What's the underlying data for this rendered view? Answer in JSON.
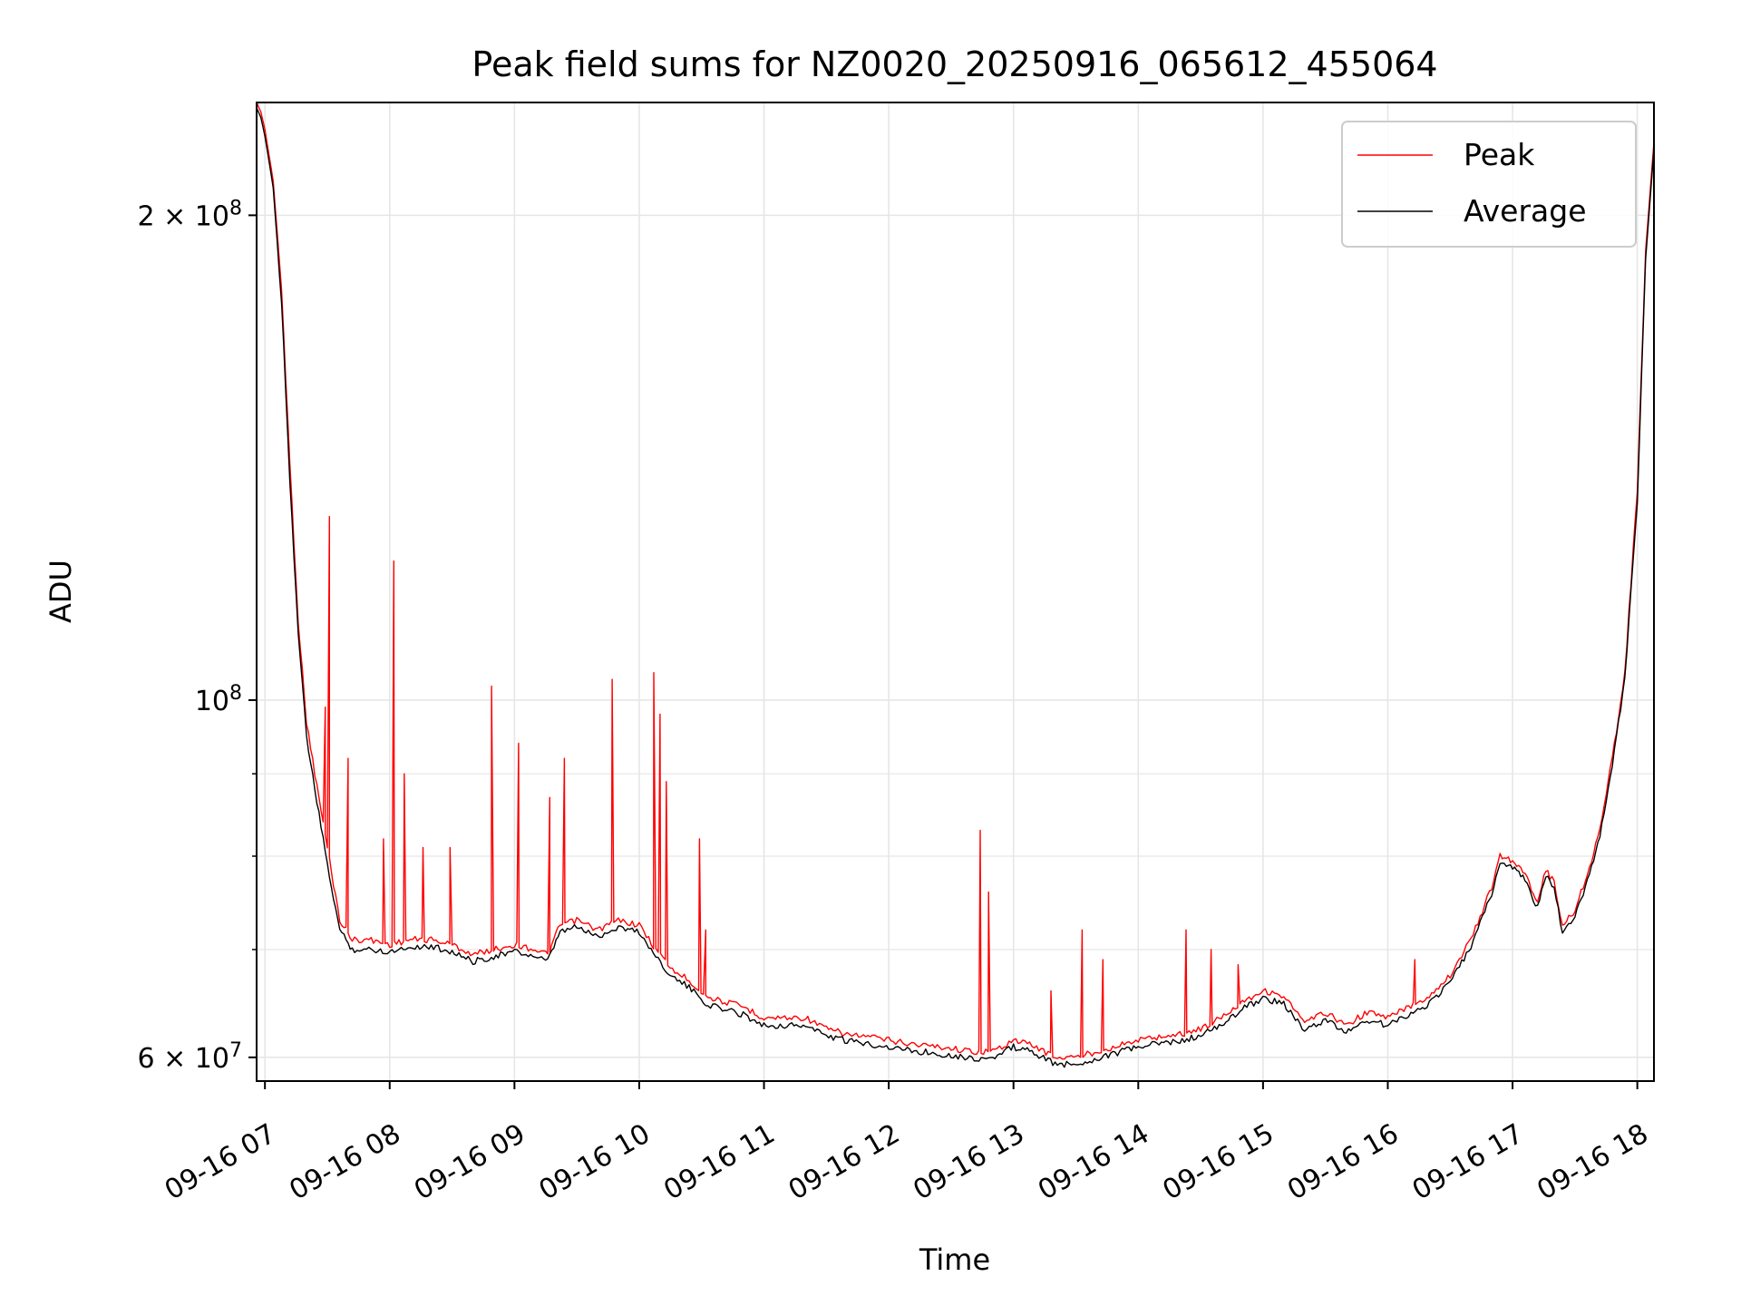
{
  "chart_data": {
    "type": "line",
    "title": "Peak field sums for NZ0020_20250916_065612_455064",
    "xlabel": "Time",
    "ylabel": "ADU",
    "x_axis": {
      "kind": "time",
      "range": [
        "2025-09-16T06:56:00",
        "2025-09-16T18:08:00"
      ],
      "ticks": [
        {
          "value": "2025-09-16T07:00",
          "label": "09-16 07"
        },
        {
          "value": "2025-09-16T08:00",
          "label": "09-16 08"
        },
        {
          "value": "2025-09-16T09:00",
          "label": "09-16 09"
        },
        {
          "value": "2025-09-16T10:00",
          "label": "09-16 10"
        },
        {
          "value": "2025-09-16T11:00",
          "label": "09-16 11"
        },
        {
          "value": "2025-09-16T12:00",
          "label": "09-16 12"
        },
        {
          "value": "2025-09-16T13:00",
          "label": "09-16 13"
        },
        {
          "value": "2025-09-16T14:00",
          "label": "09-16 14"
        },
        {
          "value": "2025-09-16T15:00",
          "label": "09-16 15"
        },
        {
          "value": "2025-09-16T16:00",
          "label": "09-16 16"
        },
        {
          "value": "2025-09-16T17:00",
          "label": "09-16 17"
        },
        {
          "value": "2025-09-16T18:00",
          "label": "09-16 18"
        }
      ]
    },
    "y_axis": {
      "scale": "log",
      "range": [
        58000000,
        235000000
      ],
      "major_ticks": [
        {
          "value": 60000000,
          "mantissa": "6",
          "exp": "7"
        },
        {
          "value": 100000000,
          "mantissa": "",
          "exp": "8"
        },
        {
          "value": 200000000,
          "mantissa": "2",
          "exp": "8"
        }
      ],
      "minor_ticks": [
        70000000,
        80000000,
        90000000
      ]
    },
    "grid": true,
    "legend_position": "top-right",
    "series": [
      {
        "name": "Peak",
        "color": "#ff0000",
        "points": [
          [
            "2025-09-16T06:56",
            235000000
          ],
          [
            "2025-09-16T06:58",
            232000000
          ],
          [
            "2025-09-16T07:00",
            226000000
          ],
          [
            "2025-09-16T07:04",
            210000000
          ],
          [
            "2025-09-16T07:08",
            180000000
          ],
          [
            "2025-09-16T07:12",
            140000000
          ],
          [
            "2025-09-16T07:16",
            112000000
          ],
          [
            "2025-09-16T07:20",
            97000000
          ],
          [
            "2025-09-16T07:24",
            90000000
          ],
          [
            "2025-09-16T07:30",
            81000000
          ],
          [
            "2025-09-16T07:36",
            73000000
          ],
          [
            "2025-09-16T07:42",
            71000000
          ],
          [
            "2025-09-16T07:50",
            71000000
          ],
          [
            "2025-09-16T08:00",
            70500000
          ],
          [
            "2025-09-16T08:10",
            71000000
          ],
          [
            "2025-09-16T08:20",
            71000000
          ],
          [
            "2025-09-16T08:30",
            70500000
          ],
          [
            "2025-09-16T08:40",
            69500000
          ],
          [
            "2025-09-16T08:50",
            70000000
          ],
          [
            "2025-09-16T09:00",
            70500000
          ],
          [
            "2025-09-16T09:10",
            70000000
          ],
          [
            "2025-09-16T09:16",
            69500000
          ],
          [
            "2025-09-16T09:22",
            72500000
          ],
          [
            "2025-09-16T09:30",
            73000000
          ],
          [
            "2025-09-16T09:40",
            72000000
          ],
          [
            "2025-09-16T09:50",
            73000000
          ],
          [
            "2025-09-16T10:00",
            72500000
          ],
          [
            "2025-09-16T10:08",
            70000000
          ],
          [
            "2025-09-16T10:16",
            68000000
          ],
          [
            "2025-09-16T10:24",
            67000000
          ],
          [
            "2025-09-16T10:32",
            65500000
          ],
          [
            "2025-09-16T10:40",
            65000000
          ],
          [
            "2025-09-16T10:50",
            64500000
          ],
          [
            "2025-09-16T11:00",
            63500000
          ],
          [
            "2025-09-16T11:10",
            63500000
          ],
          [
            "2025-09-16T11:20",
            63500000
          ],
          [
            "2025-09-16T11:30",
            62500000
          ],
          [
            "2025-09-16T11:40",
            62000000
          ],
          [
            "2025-09-16T11:50",
            61800000
          ],
          [
            "2025-09-16T12:00",
            61500000
          ],
          [
            "2025-09-16T12:10",
            61200000
          ],
          [
            "2025-09-16T12:20",
            61000000
          ],
          [
            "2025-09-16T12:30",
            60800000
          ],
          [
            "2025-09-16T12:40",
            60500000
          ],
          [
            "2025-09-16T12:50",
            60500000
          ],
          [
            "2025-09-16T13:00",
            61500000
          ],
          [
            "2025-09-16T13:10",
            61000000
          ],
          [
            "2025-09-16T13:20",
            60000000
          ],
          [
            "2025-09-16T13:30",
            60000000
          ],
          [
            "2025-09-16T13:40",
            60500000
          ],
          [
            "2025-09-16T13:50",
            61000000
          ],
          [
            "2025-09-16T14:00",
            61500000
          ],
          [
            "2025-09-16T14:10",
            61800000
          ],
          [
            "2025-09-16T14:20",
            62000000
          ],
          [
            "2025-09-16T14:30",
            62500000
          ],
          [
            "2025-09-16T14:40",
            63500000
          ],
          [
            "2025-09-16T14:50",
            65000000
          ],
          [
            "2025-09-16T15:00",
            66000000
          ],
          [
            "2025-09-16T15:10",
            65500000
          ],
          [
            "2025-09-16T15:20",
            63000000
          ],
          [
            "2025-09-16T15:30",
            64000000
          ],
          [
            "2025-09-16T15:40",
            62800000
          ],
          [
            "2025-09-16T15:50",
            64000000
          ],
          [
            "2025-09-16T16:00",
            63500000
          ],
          [
            "2025-09-16T16:10",
            64500000
          ],
          [
            "2025-09-16T16:20",
            65500000
          ],
          [
            "2025-09-16T16:30",
            67500000
          ],
          [
            "2025-09-16T16:40",
            71000000
          ],
          [
            "2025-09-16T16:50",
            76500000
          ],
          [
            "2025-09-16T16:54",
            80000000
          ],
          [
            "2025-09-16T17:00",
            79500000
          ],
          [
            "2025-09-16T17:06",
            78000000
          ],
          [
            "2025-09-16T17:12",
            75000000
          ],
          [
            "2025-09-16T17:16",
            78500000
          ],
          [
            "2025-09-16T17:20",
            77000000
          ],
          [
            "2025-09-16T17:24",
            72500000
          ],
          [
            "2025-09-16T17:30",
            74000000
          ],
          [
            "2025-09-16T17:36",
            78000000
          ],
          [
            "2025-09-16T17:42",
            83000000
          ],
          [
            "2025-09-16T17:48",
            92000000
          ],
          [
            "2025-09-16T17:54",
            104000000
          ],
          [
            "2025-09-16T18:00",
            135000000
          ],
          [
            "2025-09-16T18:04",
            190000000
          ],
          [
            "2025-09-16T18:08",
            222000000
          ]
        ],
        "spikes": [
          [
            "2025-09-16T07:31",
            130000000
          ],
          [
            "2025-09-16T07:29",
            99000000
          ],
          [
            "2025-09-16T07:40",
            92000000
          ],
          [
            "2025-09-16T07:57",
            82000000
          ],
          [
            "2025-09-16T08:02",
            122000000
          ],
          [
            "2025-09-16T08:07",
            90000000
          ],
          [
            "2025-09-16T08:16",
            81000000
          ],
          [
            "2025-09-16T08:29",
            81000000
          ],
          [
            "2025-09-16T08:49",
            102000000
          ],
          [
            "2025-09-16T09:02",
            94000000
          ],
          [
            "2025-09-16T09:17",
            87000000
          ],
          [
            "2025-09-16T09:24",
            92000000
          ],
          [
            "2025-09-16T09:47",
            103000000
          ],
          [
            "2025-09-16T10:07",
            104000000
          ],
          [
            "2025-09-16T10:10",
            98000000
          ],
          [
            "2025-09-16T10:13",
            89000000
          ],
          [
            "2025-09-16T10:29",
            82000000
          ],
          [
            "2025-09-16T10:32",
            72000000
          ],
          [
            "2025-09-16T12:44",
            83000000
          ],
          [
            "2025-09-16T12:48",
            76000000
          ],
          [
            "2025-09-16T13:18",
            66000000
          ],
          [
            "2025-09-16T13:33",
            72000000
          ],
          [
            "2025-09-16T13:43",
            69000000
          ],
          [
            "2025-09-16T14:23",
            72000000
          ],
          [
            "2025-09-16T14:35",
            70000000
          ],
          [
            "2025-09-16T14:48",
            68500000
          ],
          [
            "2025-09-16T16:13",
            69000000
          ]
        ]
      },
      {
        "name": "Average",
        "color": "#000000",
        "points": [
          [
            "2025-09-16T06:56",
            233000000
          ],
          [
            "2025-09-16T06:58",
            230000000
          ],
          [
            "2025-09-16T07:00",
            224000000
          ],
          [
            "2025-09-16T07:04",
            208000000
          ],
          [
            "2025-09-16T07:08",
            177000000
          ],
          [
            "2025-09-16T07:12",
            137000000
          ],
          [
            "2025-09-16T07:16",
            110000000
          ],
          [
            "2025-09-16T07:20",
            95000000
          ],
          [
            "2025-09-16T07:24",
            88000000
          ],
          [
            "2025-09-16T07:30",
            79000000
          ],
          [
            "2025-09-16T07:36",
            72000000
          ],
          [
            "2025-09-16T07:42",
            70000000
          ],
          [
            "2025-09-16T07:50",
            70000000
          ],
          [
            "2025-09-16T08:00",
            69800000
          ],
          [
            "2025-09-16T08:10",
            70300000
          ],
          [
            "2025-09-16T08:20",
            70300000
          ],
          [
            "2025-09-16T08:30",
            69800000
          ],
          [
            "2025-09-16T08:40",
            68800000
          ],
          [
            "2025-09-16T08:50",
            69300000
          ],
          [
            "2025-09-16T09:00",
            69800000
          ],
          [
            "2025-09-16T09:10",
            69300000
          ],
          [
            "2025-09-16T09:16",
            68800000
          ],
          [
            "2025-09-16T09:22",
            71800000
          ],
          [
            "2025-09-16T09:30",
            72300000
          ],
          [
            "2025-09-16T09:40",
            71300000
          ],
          [
            "2025-09-16T09:50",
            72300000
          ],
          [
            "2025-09-16T10:00",
            71800000
          ],
          [
            "2025-09-16T10:08",
            69300000
          ],
          [
            "2025-09-16T10:16",
            67300000
          ],
          [
            "2025-09-16T10:24",
            66300000
          ],
          [
            "2025-09-16T10:32",
            64800000
          ],
          [
            "2025-09-16T10:40",
            64300000
          ],
          [
            "2025-09-16T10:50",
            63800000
          ],
          [
            "2025-09-16T11:00",
            62800000
          ],
          [
            "2025-09-16T11:10",
            62800000
          ],
          [
            "2025-09-16T11:20",
            62800000
          ],
          [
            "2025-09-16T11:30",
            61900000
          ],
          [
            "2025-09-16T11:40",
            61400000
          ],
          [
            "2025-09-16T11:50",
            61200000
          ],
          [
            "2025-09-16T12:00",
            60900000
          ],
          [
            "2025-09-16T12:10",
            60600000
          ],
          [
            "2025-09-16T12:20",
            60400000
          ],
          [
            "2025-09-16T12:30",
            60200000
          ],
          [
            "2025-09-16T12:40",
            59900000
          ],
          [
            "2025-09-16T12:50",
            59900000
          ],
          [
            "2025-09-16T13:00",
            60900000
          ],
          [
            "2025-09-16T13:10",
            60400000
          ],
          [
            "2025-09-16T13:20",
            59400000
          ],
          [
            "2025-09-16T13:30",
            59400000
          ],
          [
            "2025-09-16T13:40",
            59900000
          ],
          [
            "2025-09-16T13:50",
            60400000
          ],
          [
            "2025-09-16T14:00",
            60900000
          ],
          [
            "2025-09-16T14:10",
            61200000
          ],
          [
            "2025-09-16T14:20",
            61400000
          ],
          [
            "2025-09-16T14:30",
            61900000
          ],
          [
            "2025-09-16T14:40",
            62800000
          ],
          [
            "2025-09-16T14:50",
            64300000
          ],
          [
            "2025-09-16T15:00",
            65300000
          ],
          [
            "2025-09-16T15:10",
            64800000
          ],
          [
            "2025-09-16T15:20",
            62300000
          ],
          [
            "2025-09-16T15:30",
            63300000
          ],
          [
            "2025-09-16T15:40",
            62200000
          ],
          [
            "2025-09-16T15:50",
            63300000
          ],
          [
            "2025-09-16T16:00",
            62800000
          ],
          [
            "2025-09-16T16:10",
            63800000
          ],
          [
            "2025-09-16T16:20",
            64800000
          ],
          [
            "2025-09-16T16:30",
            66800000
          ],
          [
            "2025-09-16T16:40",
            70300000
          ],
          [
            "2025-09-16T16:50",
            75800000
          ],
          [
            "2025-09-16T16:54",
            79300000
          ],
          [
            "2025-09-16T17:00",
            78800000
          ],
          [
            "2025-09-16T17:06",
            77300000
          ],
          [
            "2025-09-16T17:12",
            74300000
          ],
          [
            "2025-09-16T17:16",
            77800000
          ],
          [
            "2025-09-16T17:20",
            76300000
          ],
          [
            "2025-09-16T17:24",
            71800000
          ],
          [
            "2025-09-16T17:30",
            73300000
          ],
          [
            "2025-09-16T17:36",
            77300000
          ],
          [
            "2025-09-16T17:42",
            82300000
          ],
          [
            "2025-09-16T17:48",
            91200000
          ],
          [
            "2025-09-16T17:54",
            103000000
          ],
          [
            "2025-09-16T18:00",
            133000000
          ],
          [
            "2025-09-16T18:04",
            188000000
          ],
          [
            "2025-09-16T18:08",
            220000000
          ]
        ]
      }
    ]
  }
}
